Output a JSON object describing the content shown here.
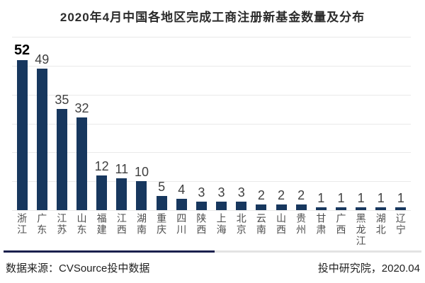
{
  "title": "2020年4月中国各地区完成工商注册新基金数量及分布",
  "chart_data": {
    "type": "bar",
    "title": "2020年4月中国各地区完成工商注册新基金数量及分布",
    "categories": [
      "浙江",
      "广东",
      "江苏",
      "山东",
      "福建",
      "江西",
      "湖南",
      "重庆",
      "四川",
      "陕西",
      "上海",
      "北京",
      "云南",
      "山西",
      "贵州",
      "甘肃",
      "广西",
      "黑龙江",
      "湖北",
      "辽宁"
    ],
    "values": [
      52,
      49,
      35,
      32,
      12,
      11,
      10,
      5,
      4,
      3,
      3,
      3,
      2,
      2,
      2,
      1,
      1,
      1,
      1,
      1
    ],
    "xlabel": "",
    "ylabel": "",
    "ylim": [
      0,
      60
    ],
    "grid_step": 10,
    "grid": "horizontal",
    "legend_position": "none",
    "value_labels_shown": true,
    "highlight_index": 0,
    "bar_color": "#17375E"
  },
  "footer": {
    "source": "数据来源：CVSource投中数据",
    "credit": "投中研究院，2020.04"
  },
  "colors": {
    "background": "#ffffff",
    "bar": "#17375E",
    "gridline": "#e9e9e9",
    "divider_dark": "#1a1f4d",
    "divider_light": "#e3e3e3",
    "value_label": "#3f3f3f",
    "value_label_highlight": "#000000",
    "axis_label": "#4d4d4d",
    "title_text": "#2b2b2b",
    "footer_text": "#1f1f1f"
  }
}
